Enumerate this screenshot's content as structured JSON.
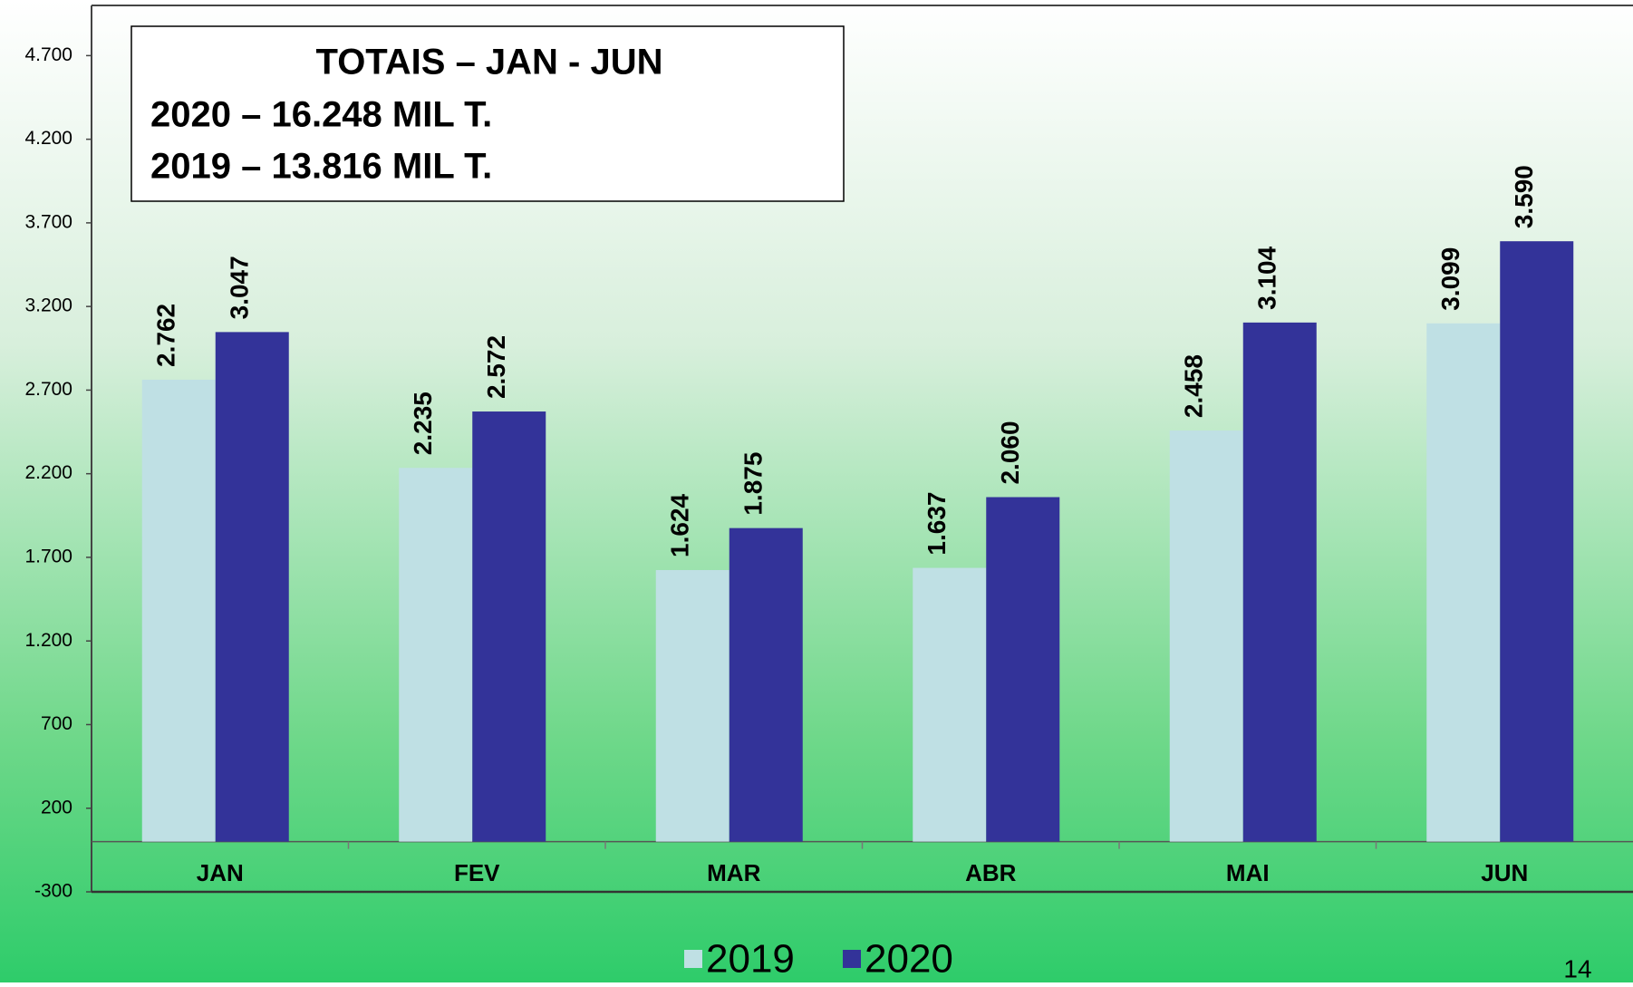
{
  "chart_data": {
    "type": "bar",
    "categories": [
      "JAN",
      "FEV",
      "MAR",
      "ABR",
      "MAI",
      "JUN"
    ],
    "series": [
      {
        "name": "2019",
        "color": "#bfe0e4",
        "values": [
          2762,
          2235,
          1624,
          1637,
          2458,
          3099
        ],
        "value_labels": [
          "2.762",
          "2.235",
          "1.624",
          "1.637",
          "2.458",
          "3.099"
        ]
      },
      {
        "name": "2020",
        "color": "#333399",
        "values": [
          3047,
          2572,
          1875,
          2060,
          3104,
          3590
        ],
        "value_labels": [
          "3.047",
          "2.572",
          "1.875",
          "2.060",
          "3.104",
          "3.590"
        ]
      }
    ],
    "ylim": [
      -300,
      5000
    ],
    "yticks": [
      -300,
      200,
      700,
      {
        "value": 1200,
        "label": "1.200"
      },
      {
        "value": 1700,
        "label": "1.700"
      },
      {
        "value": 2200,
        "label": "2.200"
      },
      {
        "value": 2700,
        "label": "2.700"
      },
      {
        "value": 3200,
        "label": "3.200"
      },
      {
        "value": 3700,
        "label": "3.700"
      },
      {
        "value": 4200,
        "label": "4.200"
      },
      {
        "value": 4700,
        "label": "4.700"
      }
    ],
    "annotation": {
      "title": "TOTAIS – JAN - JUN",
      "lines": [
        "2020 – 16.248 MIL T.",
        "2019 – 13.816 MIL T."
      ]
    },
    "legend": "bottom",
    "page_number": "14"
  }
}
